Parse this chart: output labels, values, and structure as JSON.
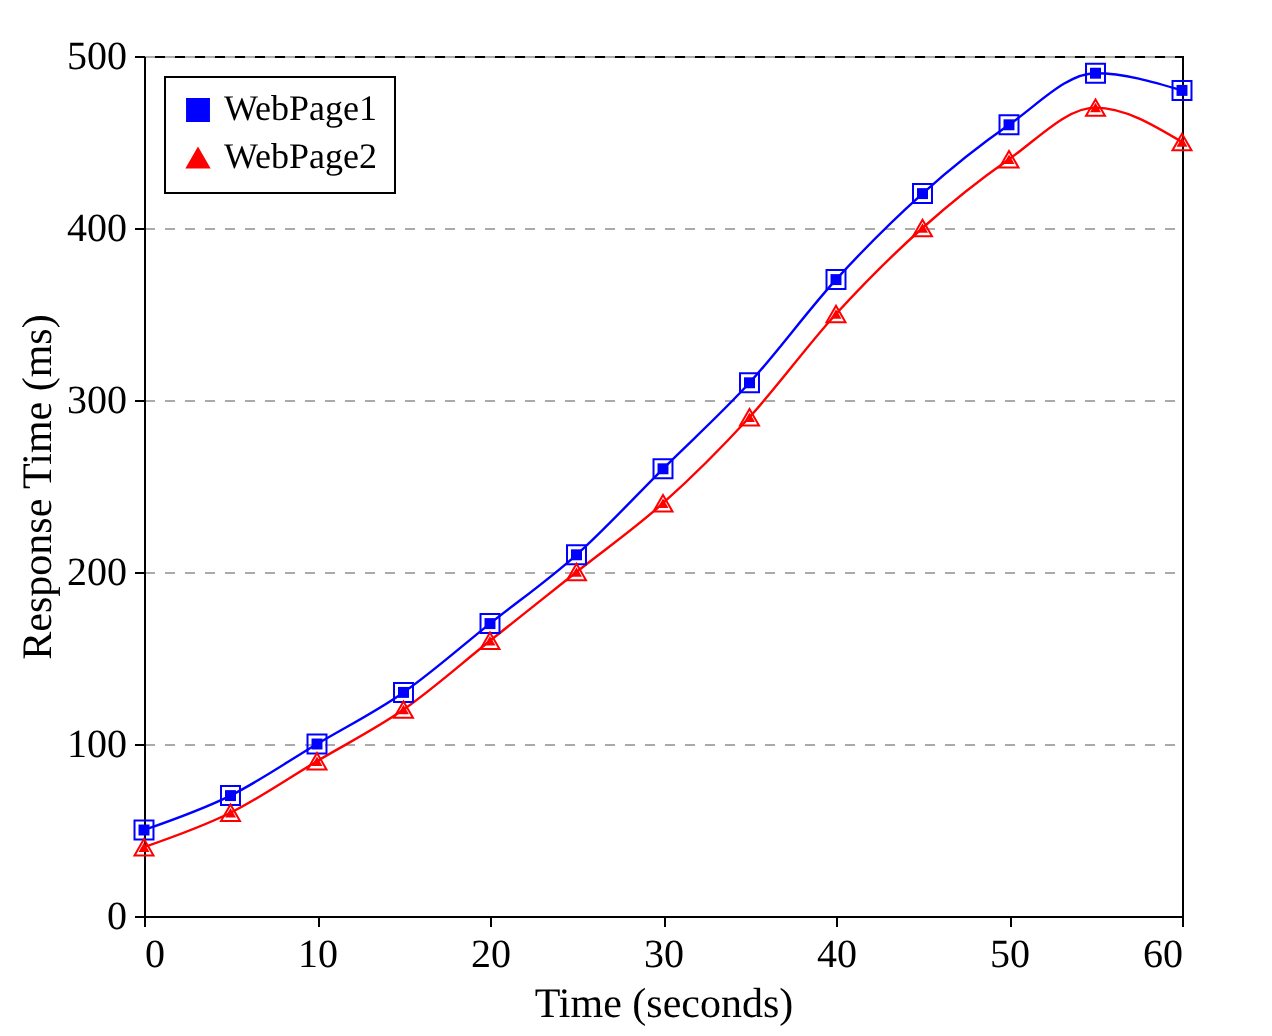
{
  "chart_data": {
    "type": "line",
    "xlabel": "Time (seconds)",
    "ylabel": "Response Time (ms)",
    "x": [
      0,
      5,
      10,
      15,
      20,
      25,
      30,
      35,
      40,
      45,
      50,
      55,
      60
    ],
    "series": [
      {
        "name": "WebPage1",
        "color": "#0000ff",
        "marker": "square",
        "values": [
          50,
          70,
          100,
          130,
          170,
          210,
          260,
          310,
          370,
          420,
          460,
          490,
          480
        ]
      },
      {
        "name": "WebPage2",
        "color": "#ff0000",
        "marker": "triangle",
        "values": [
          40,
          60,
          90,
          120,
          160,
          200,
          240,
          290,
          350,
          400,
          440,
          470,
          450
        ]
      }
    ],
    "xlim": [
      0,
      60
    ],
    "xticks": [
      0,
      10,
      20,
      30,
      40,
      50,
      60
    ],
    "ylim": [
      0,
      500
    ],
    "yticks": [
      0,
      100,
      200,
      300,
      400,
      500
    ],
    "grid": "y",
    "legend": "top left",
    "line_style": "solid"
  }
}
